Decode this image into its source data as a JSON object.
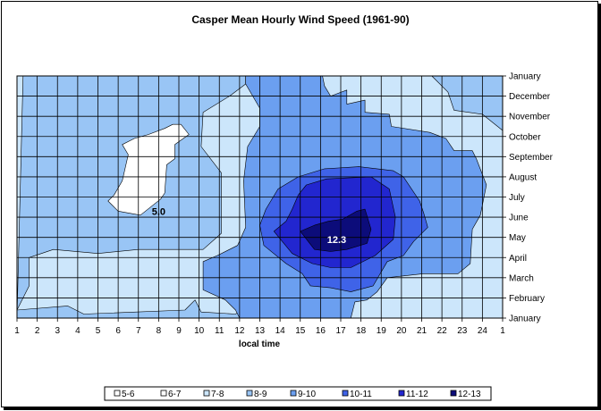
{
  "chart_data": {
    "type": "heatmap",
    "title": "Casper Mean Hourly Wind Speed (1961-90)",
    "xlabel": "local time",
    "ylabel": "",
    "x_tick_labels": [
      "1",
      "2",
      "3",
      "4",
      "5",
      "6",
      "7",
      "8",
      "9",
      "10",
      "11",
      "12",
      "13",
      "14",
      "15",
      "16",
      "17",
      "18",
      "19",
      "20",
      "21",
      "22",
      "23",
      "24",
      "1"
    ],
    "y_tick_labels": [
      "January",
      "February",
      "March",
      "April",
      "May",
      "June",
      "July",
      "August",
      "September",
      "October",
      "November",
      "December",
      "January"
    ],
    "legend_position": "bottom",
    "legend": [
      {
        "label": "5-6",
        "color": "#ffffff"
      },
      {
        "label": "6-7",
        "color": "#ffffff"
      },
      {
        "label": "7-8",
        "color": "#cce6fb"
      },
      {
        "label": "8-9",
        "color": "#99c5f5"
      },
      {
        "label": "9-10",
        "color": "#6b9ff0"
      },
      {
        "label": "10-11",
        "color": "#3f63e8"
      },
      {
        "label": "11-12",
        "color": "#2226cf"
      },
      {
        "label": "12-13",
        "color": "#0c0c7a"
      }
    ],
    "annotations": [
      {
        "text": "5.0",
        "hour": 7,
        "month_index": 5.3
      },
      {
        "text": "12.3",
        "hour": 15.8,
        "month_index": 3.9
      }
    ],
    "regions": [
      {
        "band": "8-9",
        "points": [
          [
            0,
            0
          ],
          [
            0.3,
            12
          ],
          [
            8,
            12
          ],
          [
            11.3,
            12
          ],
          [
            11.3,
            11.6
          ],
          [
            10.5,
            11
          ],
          [
            9.2,
            10.2
          ],
          [
            9.1,
            8.5
          ],
          [
            10.1,
            7.2
          ],
          [
            10.1,
            4.2
          ],
          [
            9.2,
            3.4
          ],
          [
            6,
            3.4
          ],
          [
            4,
            3.2
          ],
          [
            1.8,
            3.4
          ],
          [
            0.6,
            3
          ],
          [
            0.6,
            1.6
          ],
          [
            0,
            0.4
          ],
          [
            2.5,
            0.6
          ],
          [
            3.3,
            0.2
          ],
          [
            8.3,
            0.4
          ],
          [
            8.8,
            0.9
          ],
          [
            9.1,
            0.3
          ],
          [
            10.8,
            0.2
          ],
          [
            11.4,
            0.6
          ],
          [
            12,
            0
          ]
        ]
      },
      {
        "band": "8-9",
        "points": [
          [
            20.5,
            12
          ],
          [
            21.3,
            11.2
          ],
          [
            21.6,
            10.3
          ],
          [
            23,
            10.1
          ],
          [
            24,
            9.3
          ],
          [
            24,
            12
          ]
        ]
      },
      {
        "band": "9-10",
        "points": [
          [
            11.3,
            12
          ],
          [
            11.3,
            11.6
          ],
          [
            12,
            10.4
          ],
          [
            12,
            9.5
          ],
          [
            11.4,
            8.5
          ],
          [
            11.2,
            6.8
          ],
          [
            11.3,
            4.5
          ],
          [
            10.9,
            3.6
          ],
          [
            9.9,
            3.1
          ],
          [
            9.2,
            2.8
          ],
          [
            9.2,
            1.4
          ],
          [
            10.3,
            0.9
          ],
          [
            10.8,
            0.4
          ],
          [
            11,
            0
          ],
          [
            16.5,
            0
          ],
          [
            16.7,
            0.8
          ],
          [
            17.3,
            0.9
          ],
          [
            17.8,
            1.3
          ],
          [
            18.3,
            2
          ],
          [
            20.1,
            2.2
          ],
          [
            21.8,
            2.2
          ],
          [
            22.4,
            2.7
          ],
          [
            22.5,
            4.4
          ],
          [
            22.9,
            5.1
          ],
          [
            23.2,
            6.6
          ],
          [
            22.7,
            7.9
          ],
          [
            22.5,
            8.3
          ],
          [
            21.6,
            8.3
          ],
          [
            21.2,
            8.9
          ],
          [
            20.4,
            9.2
          ],
          [
            18.5,
            9.5
          ],
          [
            18.4,
            10.1
          ],
          [
            17.2,
            10.2
          ],
          [
            17.2,
            10.8
          ],
          [
            16.3,
            10.6
          ],
          [
            16.3,
            11.3
          ],
          [
            15.5,
            11
          ],
          [
            15.2,
            11.5
          ],
          [
            15.1,
            12
          ]
        ]
      },
      {
        "band": "10-11",
        "points": [
          [
            12.2,
            3.6
          ],
          [
            13.3,
            2.7
          ],
          [
            14.1,
            2.2
          ],
          [
            14.5,
            1.6
          ],
          [
            15.5,
            1.5
          ],
          [
            16.5,
            1.3
          ],
          [
            17.6,
            1.6
          ],
          [
            18.3,
            2.8
          ],
          [
            19.1,
            3.1
          ],
          [
            19.6,
            3.8
          ],
          [
            20.3,
            4.5
          ],
          [
            20.1,
            5.2
          ],
          [
            19.9,
            5.8
          ],
          [
            19.1,
            7
          ],
          [
            18.6,
            7.3
          ],
          [
            16.9,
            7.5
          ],
          [
            15.2,
            7.4
          ],
          [
            13.9,
            7
          ],
          [
            12.9,
            6.4
          ],
          [
            12.3,
            5.4
          ],
          [
            12,
            4.6
          ]
        ]
      },
      {
        "band": "11-12",
        "points": [
          [
            12.7,
            4.3
          ],
          [
            13.6,
            3.2
          ],
          [
            14.6,
            2.7
          ],
          [
            15.5,
            2.5
          ],
          [
            16.5,
            2.5
          ],
          [
            17.7,
            3.1
          ],
          [
            18.6,
            3.9
          ],
          [
            18.7,
            5
          ],
          [
            18.4,
            6.4
          ],
          [
            17.5,
            7
          ],
          [
            15.3,
            6.9
          ],
          [
            14.3,
            6.6
          ],
          [
            13.9,
            6.1
          ],
          [
            13.6,
            5.4
          ],
          [
            13.3,
            4.8
          ]
        ]
      },
      {
        "band": "12-13",
        "points": [
          [
            14,
            4.3
          ],
          [
            14.7,
            3.4
          ],
          [
            15.5,
            3.3
          ],
          [
            16.3,
            3.4
          ],
          [
            17.3,
            3.7
          ],
          [
            17.5,
            4.4
          ],
          [
            17.2,
            5.4
          ],
          [
            16.8,
            5.3
          ],
          [
            16.1,
            4.9
          ],
          [
            15.4,
            4.8
          ],
          [
            14.7,
            4.6
          ]
        ]
      },
      {
        "band": "6-7",
        "points": [
          [
            5.8,
            8.9
          ],
          [
            6.5,
            9.1
          ],
          [
            7.3,
            9.4
          ],
          [
            7.7,
            9.6
          ],
          [
            8.1,
            9.6
          ],
          [
            8.5,
            9.1
          ],
          [
            7.8,
            8.6
          ],
          [
            7.8,
            7.9
          ],
          [
            7.4,
            7.6
          ],
          [
            7.3,
            6.2
          ],
          [
            7.1,
            5.9
          ],
          [
            6.1,
            5.1
          ],
          [
            5,
            5.3
          ],
          [
            4.5,
            5.8
          ],
          [
            4.8,
            6.1
          ],
          [
            5.2,
            6.8
          ],
          [
            5.5,
            8.1
          ],
          [
            5.2,
            8.6
          ]
        ]
      }
    ]
  }
}
